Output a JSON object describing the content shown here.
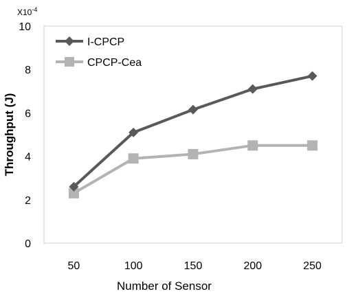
{
  "chart_data": {
    "type": "line",
    "xlabel": "Number of Sensor",
    "ylabel": "Throughput (J)",
    "scale_note": "X10^-4",
    "x": [
      50,
      100,
      150,
      200,
      250
    ],
    "ylim": [
      0,
      10
    ],
    "yticks": [
      0,
      2,
      4,
      6,
      8,
      10
    ],
    "grid": false,
    "legend_position": "top-left",
    "series": [
      {
        "name": "I-CPCP",
        "values": [
          2.6,
          5.1,
          6.15,
          7.1,
          7.7
        ],
        "color": "#595959",
        "marker": "diamond"
      },
      {
        "name": "CPCP-Cea",
        "values": [
          2.3,
          3.9,
          4.1,
          4.5,
          4.5
        ],
        "color": "#b3b3b3",
        "marker": "square"
      }
    ]
  }
}
